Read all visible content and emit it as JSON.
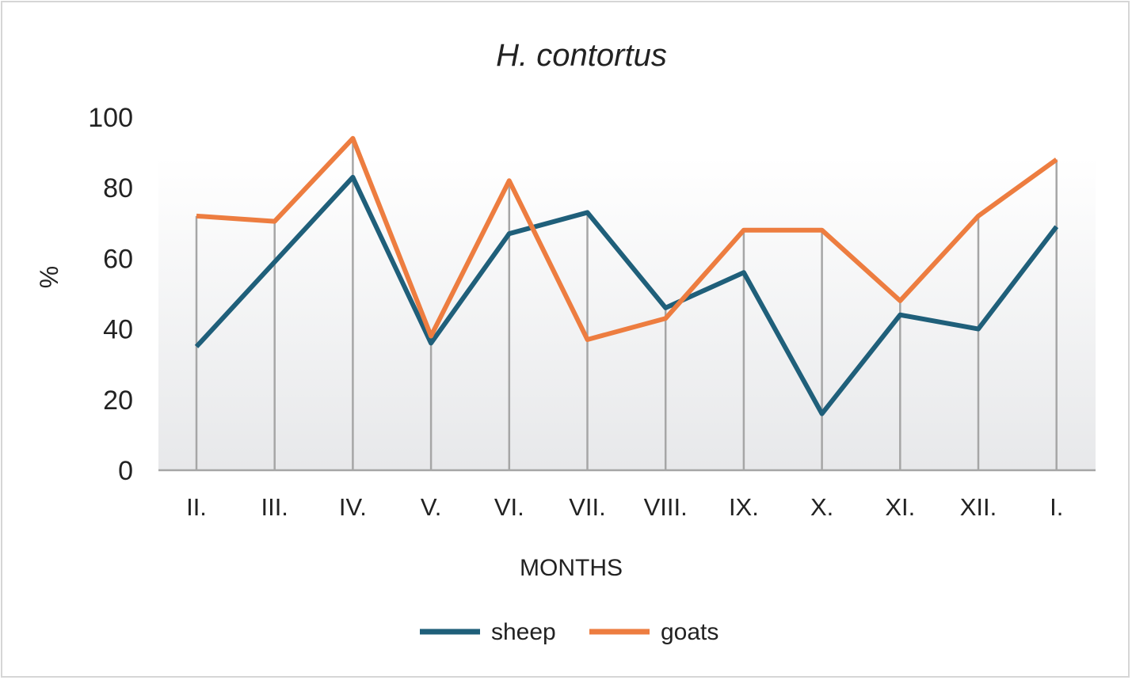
{
  "chart_data": {
    "type": "line",
    "title": "H. contortus",
    "xlabel": "MONTHS",
    "ylabel": "%",
    "ylim": [
      0,
      100
    ],
    "yticks": [
      "0",
      "20",
      "40",
      "60",
      "80",
      "100"
    ],
    "categories": [
      "II.",
      "III.",
      "IV.",
      "V.",
      "VI.",
      "VII.",
      "VIII.",
      "IX.",
      "X.",
      "XI.",
      "XII.",
      "I."
    ],
    "series": [
      {
        "name": "sheep",
        "color": "#1f5f7a",
        "values": [
          35,
          59,
          83,
          36,
          67,
          73,
          46,
          56,
          16,
          44,
          40,
          69
        ]
      },
      {
        "name": "goats",
        "color": "#ed7d40",
        "values": [
          72,
          70.5,
          94,
          38,
          82,
          37,
          43,
          68,
          68,
          48,
          72,
          88
        ]
      }
    ],
    "grid": false,
    "drop_lines": true,
    "legend": "bottom"
  }
}
